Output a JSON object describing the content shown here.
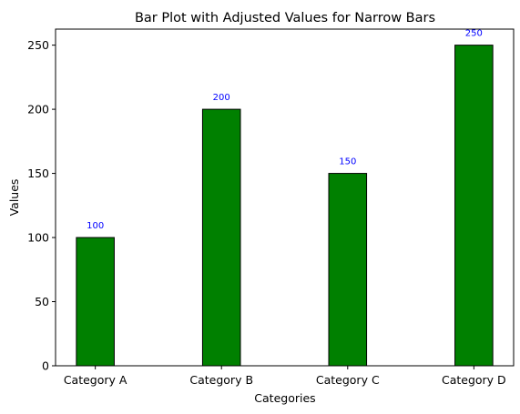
{
  "chart_data": {
    "type": "bar",
    "title": "Bar Plot with Adjusted Values for Narrow Bars",
    "xlabel": "Categories",
    "ylabel": "Values",
    "categories": [
      "Category A",
      "Category B",
      "Category C",
      "Category D"
    ],
    "values": [
      100,
      200,
      150,
      250
    ],
    "data_labels": [
      "100",
      "200",
      "150",
      "250"
    ],
    "ylim": [
      0,
      262.5
    ],
    "yticks": [
      0,
      50,
      100,
      150,
      200,
      250
    ],
    "grid": false,
    "legend": "none",
    "colors": {
      "bar_fill": "#008000",
      "bar_edge": "#000000",
      "data_label": "#0000ff",
      "axis": "#000000"
    }
  }
}
